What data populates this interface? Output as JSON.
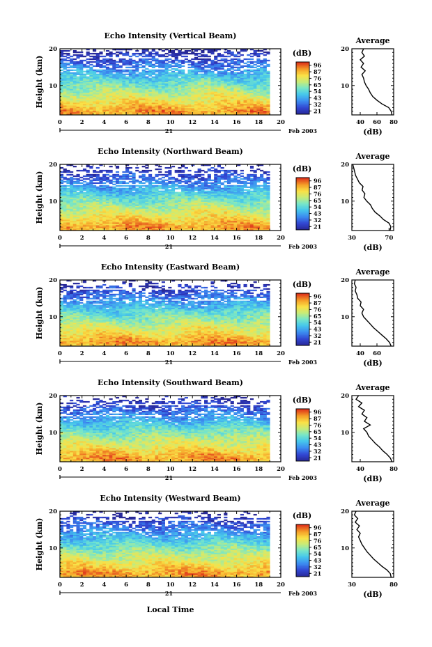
{
  "figure": {
    "date_label": "Feb 2003",
    "day_label": "21",
    "xlabel": "Local Time"
  },
  "chart_data": [
    {
      "type": "heatmap",
      "title": "Echo Intensity (Vertical Beam)",
      "ylabel": "Height (km)",
      "xlim": [
        0,
        20
      ],
      "ylim": [
        2,
        20
      ],
      "xticks": [
        "0",
        "2",
        "4",
        "6",
        "8",
        "10",
        "12",
        "14",
        "16",
        "18",
        "20"
      ],
      "yticks": [
        "10",
        "20"
      ],
      "data_x_end": 19,
      "colorbar": {
        "label": "(dB)",
        "ticks": [
          "96",
          "87",
          "76",
          "65",
          "54",
          "43",
          "32",
          "21"
        ],
        "range": [
          21,
          96
        ]
      },
      "profile": {
        "title": "Average",
        "xlabel": "(dB)",
        "xlim": [
          30,
          80
        ],
        "xticks": [
          "40",
          "60",
          "80"
        ],
        "ylim": [
          2,
          20
        ],
        "yticks": [
          "10",
          "20"
        ],
        "height_km": [
          2,
          3,
          4,
          5,
          6,
          7,
          8,
          9,
          10,
          11,
          12,
          13,
          14,
          15,
          16,
          17,
          18,
          19,
          20
        ],
        "avg_db": [
          78,
          77,
          74,
          66,
          60,
          55,
          52,
          50,
          47,
          45,
          44,
          42,
          46,
          41,
          44,
          40,
          45,
          42,
          44
        ]
      }
    },
    {
      "type": "heatmap",
      "title": "Echo Intensity (Northward Beam)",
      "ylabel": "Height (km)",
      "xlim": [
        0,
        20
      ],
      "ylim": [
        2,
        20
      ],
      "xticks": [
        "0",
        "2",
        "4",
        "6",
        "8",
        "10",
        "12",
        "14",
        "16",
        "18",
        "20"
      ],
      "yticks": [
        "10",
        "20"
      ],
      "data_x_end": 19,
      "colorbar": {
        "label": "(dB)",
        "ticks": [
          "96",
          "87",
          "76",
          "65",
          "54",
          "43",
          "32",
          "21"
        ],
        "range": [
          21,
          96
        ]
      },
      "profile": {
        "title": "Average",
        "xlabel": "(dB)",
        "xlim": [
          30,
          75
        ],
        "xticks": [
          "30",
          "70"
        ],
        "ylim": [
          2,
          20
        ],
        "yticks": [
          "10",
          "20"
        ],
        "height_km": [
          2,
          3,
          4,
          5,
          6,
          7,
          8,
          9,
          10,
          11,
          12,
          13,
          14,
          15,
          16,
          17,
          18,
          19,
          20
        ],
        "avg_db": [
          71,
          72,
          70,
          64,
          60,
          55,
          52,
          50,
          46,
          43,
          44,
          41,
          42,
          38,
          36,
          34,
          33,
          32,
          31
        ]
      }
    },
    {
      "type": "heatmap",
      "title": "Echo Intensity (Eastward Beam)",
      "ylabel": "Height (km)",
      "xlim": [
        0,
        20
      ],
      "ylim": [
        2,
        20
      ],
      "xticks": [
        "0",
        "2",
        "4",
        "6",
        "8",
        "10",
        "12",
        "14",
        "16",
        "18",
        "20"
      ],
      "yticks": [
        "10",
        "20"
      ],
      "data_x_end": 19,
      "colorbar": {
        "label": "(dB)",
        "ticks": [
          "96",
          "87",
          "76",
          "65",
          "54",
          "43",
          "32",
          "21"
        ],
        "range": [
          21,
          96
        ]
      },
      "profile": {
        "title": "Average",
        "xlabel": "(dB)",
        "xlim": [
          30,
          80
        ],
        "xticks": [
          "40",
          "60"
        ],
        "ylim": [
          2,
          20
        ],
        "yticks": [
          "10",
          "20"
        ],
        "height_km": [
          2,
          3,
          4,
          5,
          6,
          7,
          8,
          9,
          10,
          11,
          12,
          13,
          14,
          15,
          16,
          17,
          18,
          19,
          20
        ],
        "avg_db": [
          77,
          75,
          71,
          66,
          61,
          56,
          52,
          48,
          44,
          42,
          44,
          40,
          41,
          37,
          36,
          34,
          35,
          33,
          34
        ]
      }
    },
    {
      "type": "heatmap",
      "title": "Echo Intensity (Southward Beam)",
      "ylabel": "Height (km)",
      "xlim": [
        0,
        20
      ],
      "ylim": [
        2,
        20
      ],
      "xticks": [
        "0",
        "2",
        "4",
        "6",
        "8",
        "10",
        "12",
        "14",
        "16",
        "18",
        "20"
      ],
      "yticks": [
        "10",
        "20"
      ],
      "data_x_end": 19,
      "colorbar": {
        "label": "(dB)",
        "ticks": [
          "96",
          "87",
          "76",
          "65",
          "54",
          "43",
          "32",
          "21"
        ],
        "range": [
          21,
          96
        ]
      },
      "profile": {
        "title": "Average",
        "xlabel": "(dB)",
        "xlim": [
          30,
          80
        ],
        "xticks": [
          "40",
          "80"
        ],
        "ylim": [
          2,
          20
        ],
        "yticks": [
          "10",
          "20"
        ],
        "height_km": [
          2,
          3,
          4,
          5,
          6,
          7,
          8,
          9,
          10,
          11,
          12,
          13,
          14,
          15,
          16,
          17,
          18,
          19,
          20
        ],
        "avg_db": [
          78,
          76,
          72,
          67,
          63,
          58,
          54,
          50,
          48,
          44,
          52,
          45,
          48,
          42,
          45,
          38,
          42,
          35,
          38
        ]
      }
    },
    {
      "type": "heatmap",
      "title": "Echo Intensity (Westward Beam)",
      "ylabel": "Height (km)",
      "xlabel": "Local Time",
      "xlim": [
        0,
        20
      ],
      "ylim": [
        2,
        20
      ],
      "xticks": [
        "0",
        "2",
        "4",
        "6",
        "8",
        "10",
        "12",
        "14",
        "16",
        "18",
        "20"
      ],
      "yticks": [
        "10",
        "20"
      ],
      "data_x_end": 19,
      "colorbar": {
        "label": "(dB)",
        "ticks": [
          "96",
          "87",
          "76",
          "65",
          "54",
          "43",
          "32",
          "21"
        ],
        "range": [
          21,
          96
        ]
      },
      "profile": {
        "title": "Average",
        "xlabel": "(dB)",
        "xlim": [
          30,
          80
        ],
        "xticks": [
          "30",
          "80"
        ],
        "ylim": [
          2,
          20
        ],
        "yticks": [
          "10",
          "20"
        ],
        "height_km": [
          2,
          3,
          4,
          5,
          6,
          7,
          8,
          9,
          10,
          11,
          12,
          13,
          14,
          15,
          16,
          17,
          18,
          19,
          20
        ],
        "avg_db": [
          77,
          76,
          72,
          66,
          61,
          56,
          52,
          48,
          45,
          42,
          40,
          38,
          40,
          36,
          39,
          34,
          37,
          33,
          35
        ]
      }
    }
  ]
}
